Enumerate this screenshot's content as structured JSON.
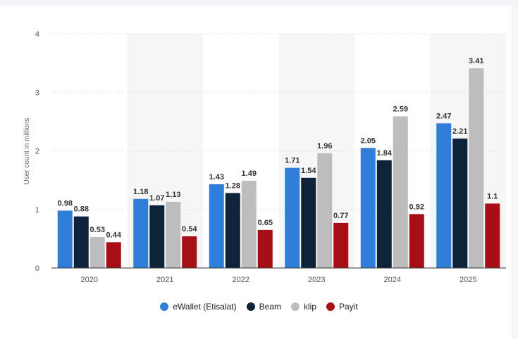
{
  "chart_data": {
    "type": "bar",
    "categories": [
      "2020",
      "2021",
      "2022",
      "2023",
      "2024",
      "2025"
    ],
    "series": [
      {
        "name": "eWallet (Etisalat)",
        "color": "#2f7ed8",
        "values": [
          0.98,
          1.18,
          1.43,
          1.71,
          2.05,
          2.47
        ],
        "labels": [
          "0.98",
          "1.18",
          "1.43",
          "1.71",
          "2.05",
          "2.47"
        ]
      },
      {
        "name": "Beam",
        "color": "#0d233a",
        "values": [
          0.88,
          1.07,
          1.28,
          1.54,
          1.84,
          2.21
        ],
        "labels": [
          "0.88",
          "1.07",
          "1.28",
          "1.54",
          "1.84",
          "2.21"
        ]
      },
      {
        "name": "klip",
        "color": "#bdbdbd",
        "values": [
          0.53,
          1.13,
          1.49,
          1.96,
          2.59,
          3.41
        ],
        "labels": [
          "0.53",
          "1.13",
          "1.49",
          "1.96",
          "2.59",
          "3.41"
        ]
      },
      {
        "name": "Payit",
        "color": "#a50f15",
        "values": [
          0.44,
          0.54,
          0.65,
          0.77,
          0.92,
          1.1
        ],
        "labels": [
          "0.44",
          "0.54",
          "0.65",
          "0.77",
          "0.92",
          "1.1"
        ]
      }
    ],
    "ylabel": "User count in millions",
    "xlabel": "",
    "ylim": [
      0,
      4
    ],
    "yticks": [
      "0",
      "1",
      "2",
      "3",
      "4"
    ],
    "grid": true,
    "legend_position": "bottom"
  }
}
